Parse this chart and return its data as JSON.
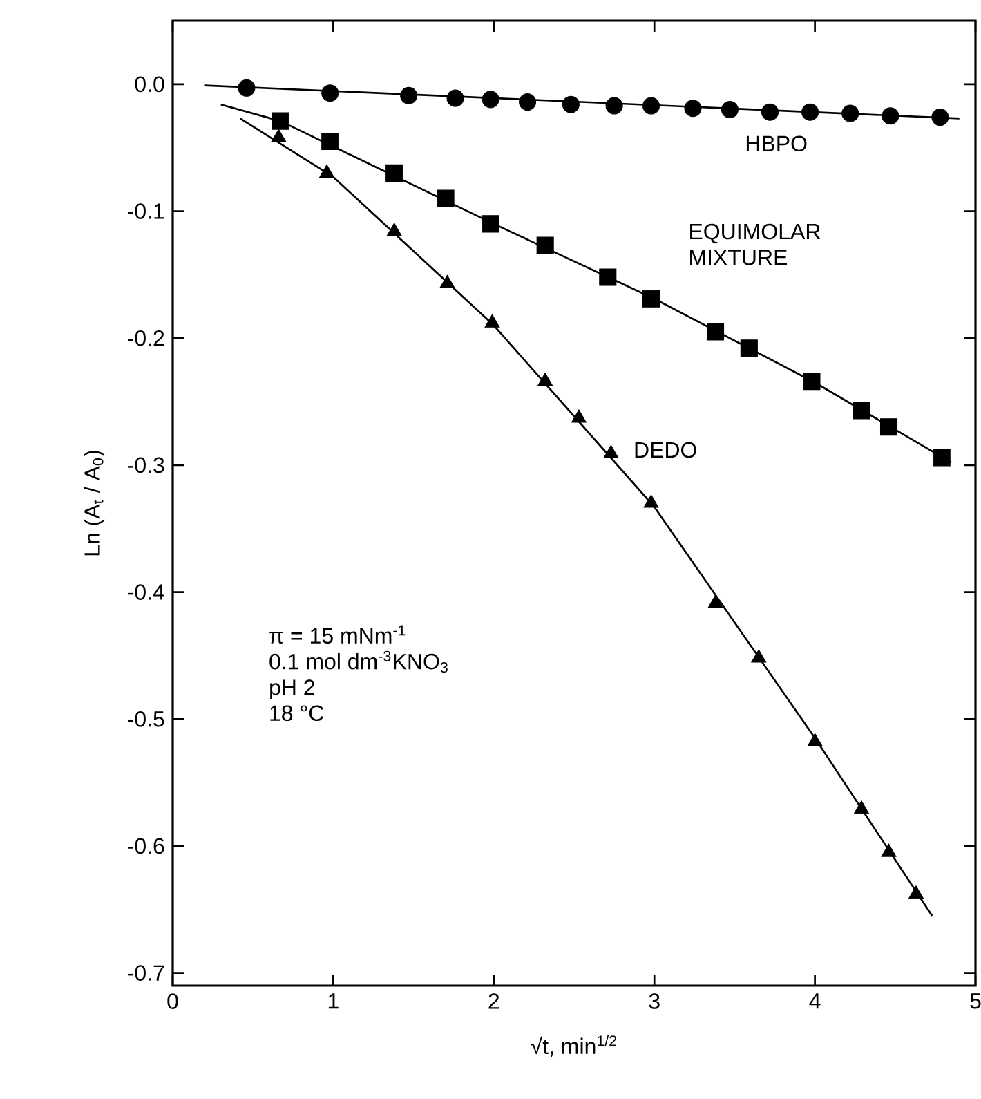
{
  "chart_data": {
    "type": "scatter",
    "xlabel": "√t,  min$^{1/2}$",
    "ylabel": "Ln (A$_{t}$ / A$_{0}$)",
    "xlim": [
      0,
      5
    ],
    "ylim": [
      -0.71,
      0.05
    ],
    "xticks": [
      0,
      1,
      2,
      3,
      4,
      5
    ],
    "yticks": [
      {
        "value": 0,
        "label": "0.0"
      },
      -0.1,
      -0.2,
      -0.3,
      -0.4,
      -0.5,
      -0.6,
      -0.7
    ],
    "grid": false,
    "legend": false,
    "annotations": [
      "π = 15 mNm$^{-1}$",
      "0.1 mol dm$^{-3}$KNO$_{3}$",
      "pH 2",
      "18 °C"
    ],
    "series": [
      {
        "name": "HBPO",
        "marker": "circle",
        "color": "#000000",
        "x": [
          0.46,
          0.98,
          1.47,
          1.76,
          1.98,
          2.21,
          2.48,
          2.75,
          2.98,
          3.24,
          3.47,
          3.72,
          3.97,
          4.22,
          4.47,
          4.78
        ],
        "values": [
          -0.003,
          -0.007,
          -0.009,
          -0.011,
          -0.012,
          -0.014,
          -0.016,
          -0.017,
          -0.017,
          -0.019,
          -0.02,
          -0.022,
          -0.022,
          -0.023,
          -0.025,
          -0.026
        ]
      },
      {
        "name": "EQUIMOLAR MIXTURE",
        "marker": "square",
        "color": "#000000",
        "x": [
          0.67,
          0.98,
          1.38,
          1.7,
          1.98,
          2.32,
          2.71,
          2.98,
          3.38,
          3.59,
          3.98,
          4.29,
          4.46,
          4.79
        ],
        "values": [
          -0.029,
          -0.045,
          -0.07,
          -0.09,
          -0.11,
          -0.127,
          -0.152,
          -0.169,
          -0.195,
          -0.208,
          -0.234,
          -0.257,
          -0.27,
          -0.294
        ]
      },
      {
        "name": "DEDO",
        "marker": "triangle",
        "color": "#000000",
        "x": [
          0.66,
          0.96,
          1.38,
          1.71,
          1.99,
          2.32,
          2.53,
          2.73,
          2.98,
          3.38,
          3.65,
          4.0,
          4.29,
          4.46,
          4.63
        ],
        "values": [
          -0.042,
          -0.07,
          -0.116,
          -0.157,
          -0.188,
          -0.234,
          -0.263,
          -0.291,
          -0.33,
          -0.409,
          -0.452,
          -0.518,
          -0.571,
          -0.605,
          -0.638
        ]
      },
      {
        "type": "line",
        "marker": "none",
        "line_style": "solid",
        "color": "#000000",
        "x": [
          0.2,
          4.9
        ],
        "values": [
          -0.001,
          -0.027
        ]
      },
      {
        "type": "line",
        "marker": "none",
        "line_style": "solid",
        "color": "#000000",
        "x": [
          0.3,
          0.67,
          2.0,
          3.0,
          4.0,
          4.85
        ],
        "values": [
          -0.016,
          -0.029,
          -0.11,
          -0.169,
          -0.235,
          -0.298
        ]
      },
      {
        "type": "line",
        "marker": "none",
        "line_style": "solid",
        "color": "#000000",
        "x": [
          0.42,
          1.0,
          2.0,
          3.0,
          4.0,
          4.73
        ],
        "values": [
          -0.027,
          -0.073,
          -0.19,
          -0.333,
          -0.515,
          -0.655
        ]
      }
    ]
  }
}
